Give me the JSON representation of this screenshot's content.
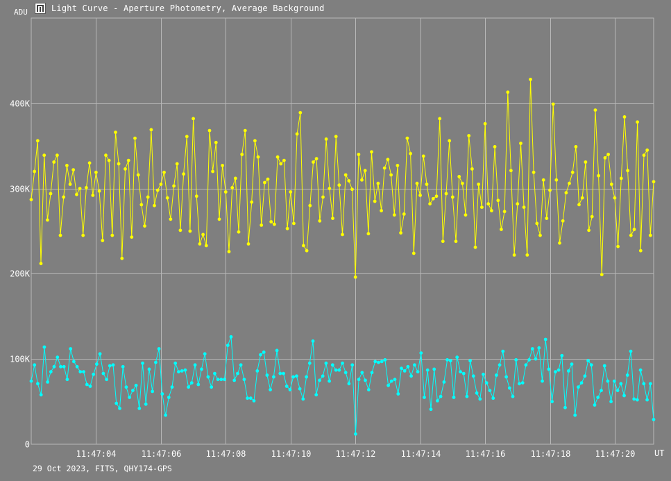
{
  "window": {
    "title": "Light Curve - Aperture Photometry, Average Background",
    "icon": "light-curve-app-icon"
  },
  "footer": {
    "text": "29 Oct 2023, FITS, QHY174-GPS"
  },
  "colors": {
    "background": "#7f7f7f",
    "grid": "#b8b8b8",
    "axis_text": "#ffffff",
    "series_target": "#ffff00",
    "series_comparison": "#00ffff"
  },
  "chart_data": {
    "type": "line",
    "ylabel": "ADU",
    "xlabel": "UT",
    "ylim": [
      0,
      500000
    ],
    "xlim": [
      3.0,
      12.6
    ],
    "y_ticks": [
      {
        "value": 0,
        "label": "0"
      },
      {
        "value": 100000,
        "label": "100K"
      },
      {
        "value": 200000,
        "label": "200K"
      },
      {
        "value": 300000,
        "label": "300K"
      },
      {
        "value": 400000,
        "label": "400K"
      }
    ],
    "x_ticks": [
      {
        "value": 4,
        "label": "11:47:04"
      },
      {
        "value": 5,
        "label": "11:47:06"
      },
      {
        "value": 6,
        "label": "11:47:08"
      },
      {
        "value": 7,
        "label": "11:47:10"
      },
      {
        "value": 8,
        "label": "11:47:12"
      },
      {
        "value": 9,
        "label": "11:47:14"
      },
      {
        "value": 10,
        "label": "11:47:16"
      },
      {
        "value": 11,
        "label": "11:47:18"
      },
      {
        "value": 12,
        "label": "11:47:20"
      }
    ],
    "grid": true,
    "series": [
      {
        "color": "#ffff00",
        "values": [
          287000,
          320000,
          356000,
          212000,
          339000,
          263000,
          294000,
          331000,
          339000,
          245000,
          290000,
          327000,
          305000,
          322000,
          293000,
          300000,
          245000,
          301000,
          330000,
          292000,
          319000,
          297000,
          239000,
          339000,
          333000,
          245000,
          366000,
          329000,
          218000,
          323000,
          333000,
          243000,
          359000,
          316000,
          281000,
          256000,
          290000,
          369000,
          280000,
          298000,
          305000,
          319000,
          289000,
          264000,
          303000,
          329000,
          251000,
          317000,
          361000,
          250000,
          382000,
          291000,
          235000,
          246000,
          233000,
          368000,
          320000,
          354000,
          264000,
          327000,
          296000,
          226000,
          301000,
          312000,
          249000,
          340000,
          368000,
          235000,
          284000,
          356000,
          337000,
          257000,
          307000,
          311000,
          261000,
          258000,
          337000,
          329000,
          333000,
          253000,
          296000,
          259000,
          364000,
          389000,
          233000,
          227000,
          280000,
          331000,
          335000,
          262000,
          290000,
          358000,
          300000,
          265000,
          361000,
          304000,
          246000,
          316000,
          309000,
          299000,
          196000,
          340000,
          310000,
          321000,
          247000,
          343000,
          285000,
          306000,
          274000,
          324000,
          334000,
          316000,
          269000,
          327000,
          248000,
          270000,
          359000,
          341000,
          224000,
          306000,
          292000,
          338000,
          305000,
          282000,
          288000,
          291000,
          382000,
          238000,
          294000,
          356000,
          290000,
          238000,
          314000,
          306000,
          269000,
          362000,
          323000,
          231000,
          305000,
          278000,
          376000,
          282000,
          274000,
          349000,
          286000,
          252000,
          273000,
          413000,
          321000,
          222000,
          282000,
          353000,
          278000,
          222000,
          428000,
          319000,
          259000,
          245000,
          310000,
          265000,
          298000,
          399000,
          310000,
          236000,
          262000,
          295000,
          306000,
          319000,
          349000,
          281000,
          289000,
          331000,
          251000,
          267000,
          392000,
          315000,
          199000,
          336000,
          340000,
          305000,
          289000,
          232000,
          312000,
          384000,
          321000,
          245000,
          252000,
          378000,
          227000,
          339000,
          345000,
          245000,
          308000
        ]
      },
      {
        "color": "#00ffff",
        "values": [
          74000,
          93000,
          71000,
          58000,
          114000,
          73000,
          85000,
          91000,
          102000,
          91000,
          91000,
          76000,
          112000,
          97000,
          91000,
          85000,
          85000,
          70000,
          68000,
          82000,
          94000,
          106000,
          83000,
          76000,
          92000,
          93000,
          48000,
          42000,
          91000,
          67000,
          55000,
          63000,
          69000,
          42000,
          95000,
          47000,
          88000,
          62000,
          96000,
          112000,
          59000,
          34000,
          55000,
          67000,
          95000,
          85000,
          86000,
          87000,
          67000,
          72000,
          93000,
          70000,
          88000,
          106000,
          79000,
          67000,
          83000,
          76000,
          76000,
          76000,
          116000,
          126000,
          75000,
          83000,
          93000,
          76000,
          54000,
          54000,
          51000,
          86000,
          105000,
          108000,
          81000,
          64000,
          79000,
          110000,
          83000,
          83000,
          68000,
          64000,
          79000,
          80000,
          65000,
          53000,
          79000,
          95000,
          121000,
          58000,
          75000,
          80000,
          95000,
          74000,
          93000,
          87000,
          87000,
          95000,
          84000,
          71000,
          93000,
          12000,
          76000,
          84000,
          75000,
          64000,
          84000,
          97000,
          96000,
          97000,
          99000,
          69000,
          74000,
          76000,
          59000,
          89000,
          86000,
          91000,
          80000,
          93000,
          85000,
          107000,
          55000,
          87000,
          41000,
          88000,
          51000,
          56000,
          73000,
          99000,
          98000,
          55000,
          102000,
          85000,
          83000,
          56000,
          98000,
          80000,
          60000,
          53000,
          82000,
          72000,
          63000,
          54000,
          81000,
          93000,
          109000,
          79000,
          66000,
          56000,
          99000,
          71000,
          72000,
          93000,
          99000,
          112000,
          100000,
          113000,
          74000,
          123000,
          88000,
          50000,
          85000,
          87000,
          104000,
          43000,
          86000,
          94000,
          34000,
          67000,
          72000,
          80000,
          98000,
          93000,
          46000,
          55000,
          63000,
          92000,
          74000,
          50000,
          74000,
          63000,
          71000,
          57000,
          81000,
          109000,
          53000,
          52000,
          87000,
          71000,
          52000,
          71000,
          29000
        ]
      }
    ]
  }
}
